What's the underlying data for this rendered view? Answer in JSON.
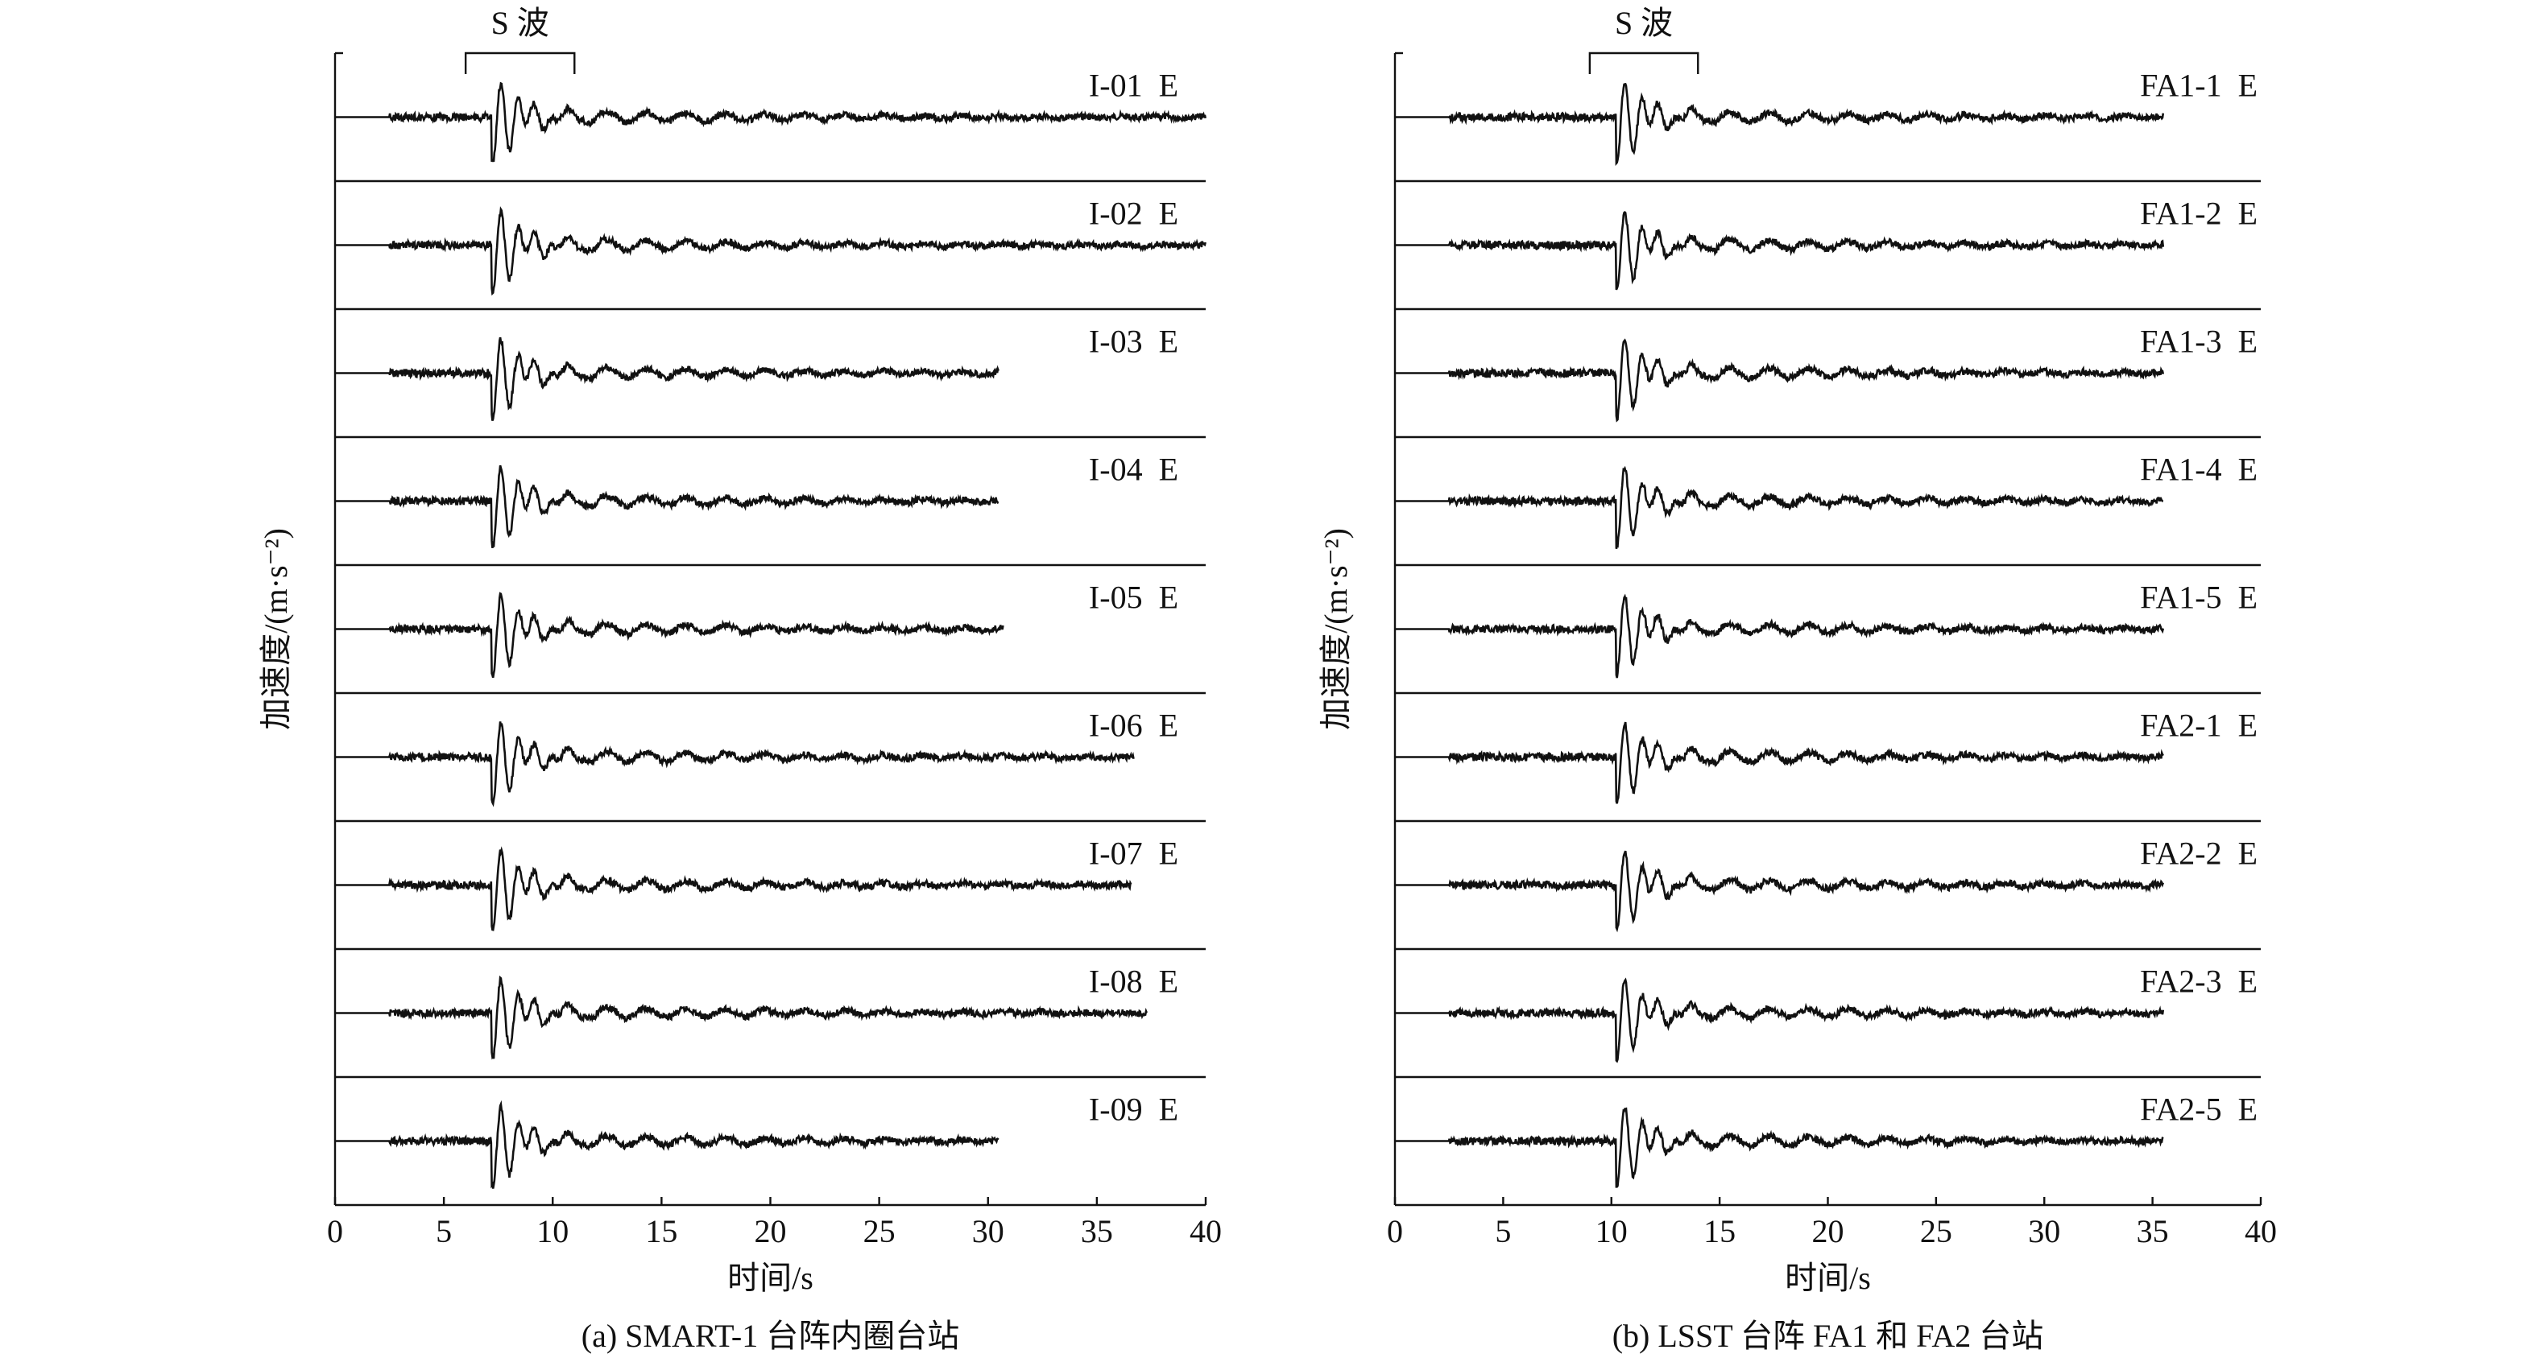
{
  "chart_data": [
    {
      "type": "waveform",
      "caption": "(a) SMART-1 台阵内圈台站",
      "xlabel": "时间/s",
      "ylabel": "加速度/(m·s⁻²)",
      "s_wave_label": "S 波",
      "s_wave": [
        6,
        11
      ],
      "color": "#111111",
      "xlim": [
        0,
        40
      ],
      "xticks": [
        0,
        5,
        10,
        15,
        20,
        25,
        30,
        35,
        40
      ],
      "series": [
        {
          "name": "I-01  E",
          "end": 40
        },
        {
          "name": "I-02  E",
          "end": 40
        },
        {
          "name": "I-03  E",
          "end": 30.5
        },
        {
          "name": "I-04  E",
          "end": 30.5
        },
        {
          "name": "I-05  E",
          "end": 30.7
        },
        {
          "name": "I-06  E",
          "end": 36.7
        },
        {
          "name": "I-07  E",
          "end": 36.6
        },
        {
          "name": "I-08  E",
          "end": 37.3
        },
        {
          "name": "I-09  E",
          "end": 30.5
        }
      ]
    },
    {
      "type": "waveform",
      "caption": "(b) LSST 台阵 FA1 和 FA2 台站",
      "xlabel": "时间/s",
      "ylabel": "加速度/(m·s⁻²)",
      "s_wave_label": "S 波",
      "s_wave": [
        9,
        14
      ],
      "color": "#111111",
      "xlim": [
        0,
        40
      ],
      "xticks": [
        0,
        5,
        10,
        15,
        20,
        25,
        30,
        35,
        40
      ],
      "series": [
        {
          "name": "FA1-1  E",
          "end": 35.5
        },
        {
          "name": "FA1-2  E",
          "end": 35.5
        },
        {
          "name": "FA1-3  E",
          "end": 35.5
        },
        {
          "name": "FA1-4  E",
          "end": 35.5
        },
        {
          "name": "FA1-5  E",
          "end": 35.5
        },
        {
          "name": "FA2-1  E",
          "end": 35.5
        },
        {
          "name": "FA2-2  E",
          "end": 35.5
        },
        {
          "name": "FA2-3  E",
          "end": 35.5
        },
        {
          "name": "FA2-5  E",
          "end": 35.5
        }
      ]
    }
  ]
}
